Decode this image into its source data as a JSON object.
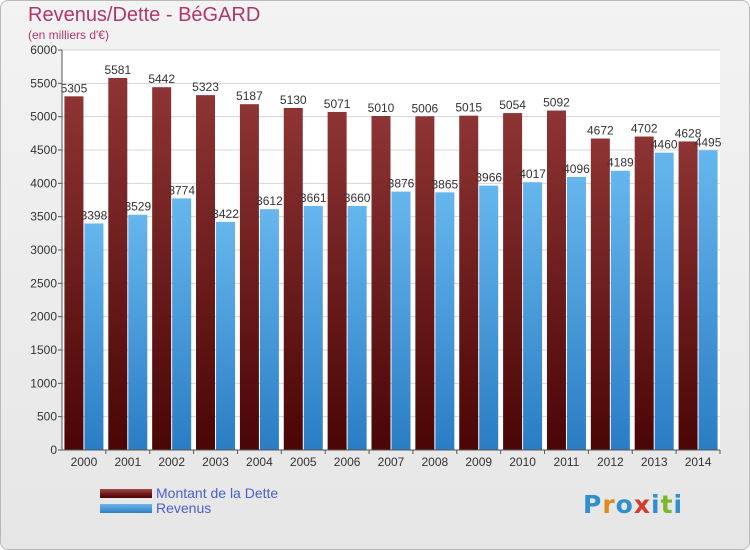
{
  "title": "Revenus/Dette - BéGARD",
  "subtitle": "(en milliers d'€)",
  "legend": {
    "debt": "Montant de la Dette",
    "revenue": "Revenus"
  },
  "logo": "Proxiti",
  "colors": {
    "debt_top": "#8e3434",
    "debt_bottom": "#4a0505",
    "revenue_top": "#66b6ee",
    "revenue_bottom": "#2a7dc4",
    "title": "#b0366b",
    "legend_text": "#4a5fd0"
  },
  "chart_data": {
    "type": "bar",
    "categories": [
      "2000",
      "2001",
      "2002",
      "2003",
      "2004",
      "2005",
      "2006",
      "2007",
      "2008",
      "2009",
      "2010",
      "2011",
      "2012",
      "2013",
      "2014"
    ],
    "series": [
      {
        "name": "Montant de la Dette",
        "values": [
          5305,
          5581,
          5442,
          5323,
          5187,
          5130,
          5071,
          5010,
          5006,
          5015,
          5054,
          5092,
          4672,
          4702,
          4628
        ]
      },
      {
        "name": "Revenus",
        "values": [
          3398,
          3529,
          3774,
          3422,
          3612,
          3661,
          3660,
          3876,
          3865,
          3966,
          4017,
          4096,
          4189,
          4460,
          4495
        ]
      }
    ],
    "yticks": [
      0,
      500,
      1000,
      1500,
      2000,
      2500,
      3000,
      3500,
      4000,
      4500,
      5000,
      5500,
      6000
    ],
    "ylim": [
      0,
      6000
    ],
    "grid": true,
    "legend_position": "bottom-left"
  }
}
